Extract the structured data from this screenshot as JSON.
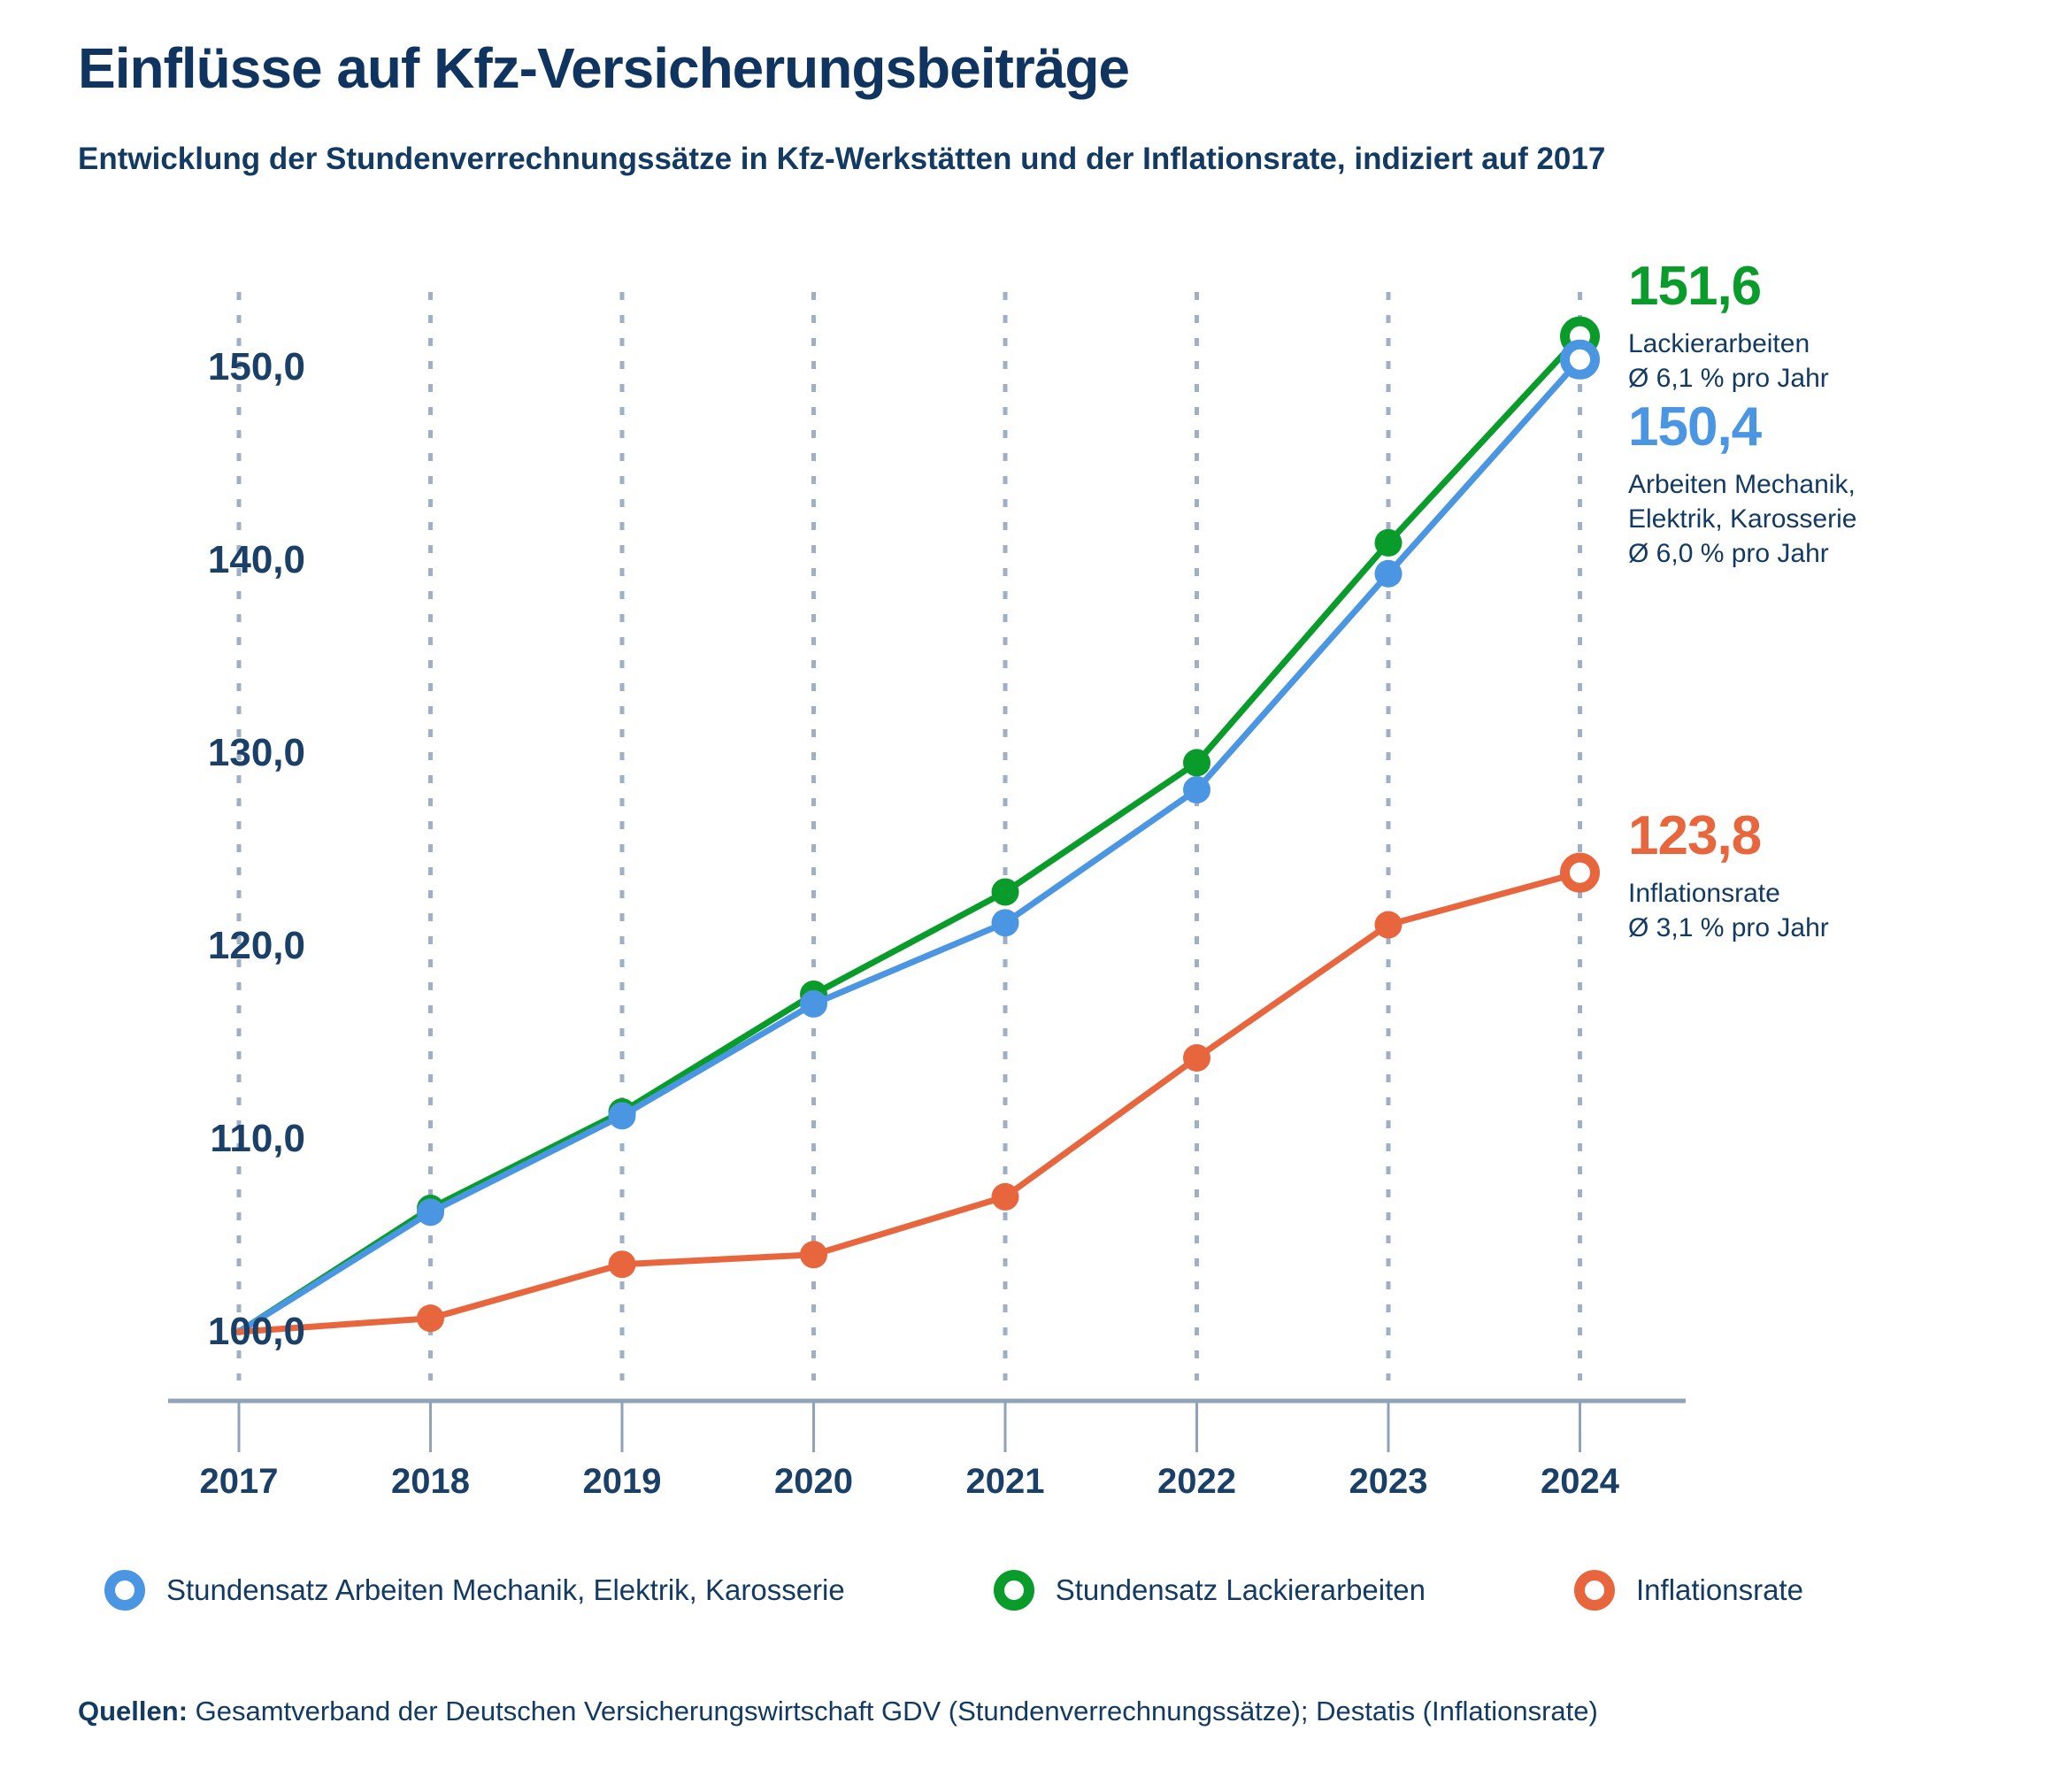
{
  "header": {
    "title": "Einflüsse auf Kfz-Versicherungsbeiträge",
    "subtitle": "Entwicklung der Stundenverrechnungssätze in Kfz-Werkstätten und der Inflationsrate, indiziert auf 2017"
  },
  "chart_data": {
    "type": "line",
    "x": [
      2017,
      2018,
      2019,
      2020,
      2021,
      2022,
      2023,
      2024
    ],
    "series": [
      {
        "id": "lackier",
        "name": "Stundensatz Lackierarbeiten",
        "color": "#0a9c2a",
        "values": [
          100.0,
          106.4,
          111.4,
          117.5,
          122.8,
          129.5,
          140.9,
          151.6
        ],
        "end_value_label": "151,6",
        "end_note_lines": [
          "Lackierarbeiten",
          "Ø 6,1 % pro Jahr"
        ]
      },
      {
        "id": "mechanik",
        "name": "Stundensatz Arbeiten Mechanik, Elektrik, Karosserie",
        "color": "#4b96e2",
        "values": [
          100.0,
          106.2,
          111.2,
          117.0,
          121.2,
          128.1,
          139.3,
          150.4
        ],
        "end_value_label": "150,4",
        "end_note_lines": [
          "Arbeiten Mechanik,",
          "Elektrik, Karosserie",
          "Ø 6,0 % pro Jahr"
        ]
      },
      {
        "id": "inflation",
        "name": "Inflationsrate",
        "color": "#e8663e",
        "values": [
          100.0,
          100.7,
          103.5,
          104.0,
          107.0,
          114.2,
          121.1,
          123.8
        ],
        "end_value_label": "123,8",
        "end_note_lines": [
          "Inflationsrate",
          "Ø 3,1 % pro Jahr"
        ]
      }
    ],
    "yticks": [
      {
        "v": 100,
        "label": "100,0"
      },
      {
        "v": 110,
        "label": "110,0"
      },
      {
        "v": 120,
        "label": "120,0"
      },
      {
        "v": 130,
        "label": "130,0"
      },
      {
        "v": 140,
        "label": "140,0"
      },
      {
        "v": 150,
        "label": "150,0"
      }
    ],
    "ylim": [
      96,
      156
    ],
    "grid": "vertical-dotted",
    "legend_position": "bottom",
    "title": "Einflüsse auf Kfz-Versicherungsbeiträge",
    "xlabel": "",
    "ylabel": ""
  },
  "legend": {
    "items": [
      {
        "label": "Stundensatz Arbeiten Mechanik, Elektrik, Karosserie",
        "color": "#4b96e2"
      },
      {
        "label": "Stundensatz Lackierarbeiten",
        "color": "#0a9c2a"
      },
      {
        "label": "Inflationsrate",
        "color": "#e8663e"
      }
    ]
  },
  "source": {
    "label": "Quellen:",
    "text": " Gesamtverband der Deutschen Versicherungswirtschaft GDV (Stundenverrechnungssätze); Destatis (Inflationsrate)"
  },
  "colors": {
    "navy_text": "#123a63",
    "axis": "#8fa2b9",
    "grid_dash": "#9fafc6"
  }
}
